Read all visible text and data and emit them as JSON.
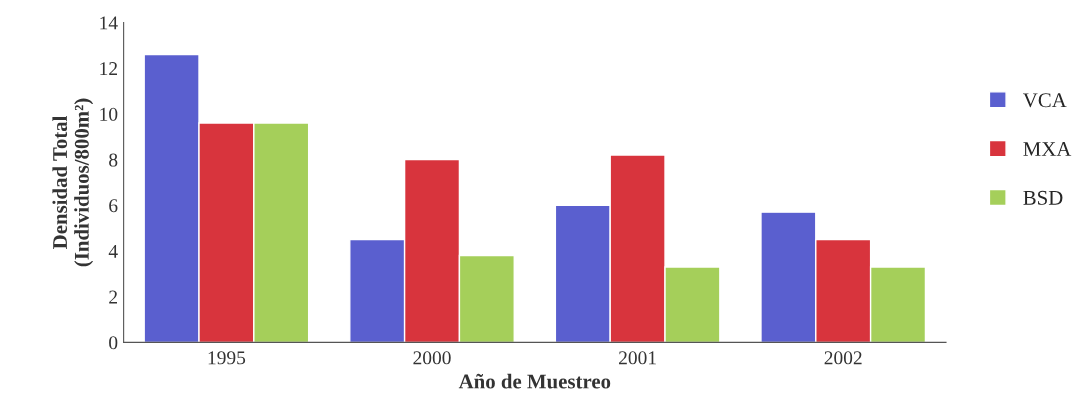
{
  "chart_data": {
    "type": "bar",
    "xlabel": "Año de Muestreo",
    "ylabel": "Densidad Total\n(Individuos/800m²)",
    "categories": [
      "1995",
      "2000",
      "2001",
      "2002"
    ],
    "series": [
      {
        "name": "VCA",
        "color": "#5a5fcf",
        "values": [
          12.6,
          4.5,
          6.0,
          5.7
        ]
      },
      {
        "name": "MXA",
        "color": "#d8343d",
        "values": [
          9.6,
          8.0,
          8.2,
          4.5
        ]
      },
      {
        "name": "BSD",
        "color": "#a5cf5a",
        "values": [
          9.6,
          3.8,
          3.3,
          3.3
        ]
      }
    ],
    "ylim": [
      0,
      14
    ],
    "yticks": [
      0,
      2,
      4,
      6,
      8,
      10,
      12,
      14
    ],
    "grid": false,
    "legend": "right"
  }
}
